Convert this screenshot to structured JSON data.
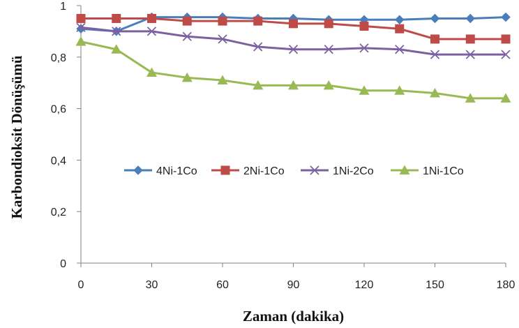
{
  "chart_data": {
    "type": "line",
    "xlabel": "Zaman (dakika)",
    "ylabel": "Karbondioksit Dönüşümü",
    "xlim": [
      0,
      180
    ],
    "ylim": [
      0,
      1
    ],
    "x_ticks": [
      0,
      30,
      60,
      90,
      120,
      150,
      180
    ],
    "x_tick_labels": [
      "0",
      "30",
      "60",
      "90",
      "120",
      "150",
      "180"
    ],
    "y_ticks": [
      0,
      0.2,
      0.4,
      0.6,
      0.8,
      1
    ],
    "y_tick_labels": [
      "0",
      "0,2",
      "0,4",
      "0,6",
      "0,8",
      "1"
    ],
    "grid": false,
    "legend_position": "center",
    "x": [
      0,
      15,
      30,
      45,
      60,
      75,
      90,
      105,
      120,
      135,
      150,
      165,
      180
    ],
    "series": [
      {
        "name": "4Ni-1Co",
        "color": "#4A7EBB",
        "marker": "diamond",
        "values": [
          0.91,
          0.9,
          0.955,
          0.955,
          0.955,
          0.95,
          0.95,
          0.945,
          0.945,
          0.945,
          0.95,
          0.95,
          0.955
        ]
      },
      {
        "name": "2Ni-1Co",
        "color": "#BE4B48",
        "marker": "square",
        "values": [
          0.95,
          0.95,
          0.95,
          0.94,
          0.94,
          0.94,
          0.93,
          0.93,
          0.92,
          0.91,
          0.87,
          0.87,
          0.87
        ]
      },
      {
        "name": "1Ni-2Co",
        "color": "#7D60A0",
        "marker": "x",
        "values": [
          0.915,
          0.9,
          0.9,
          0.88,
          0.87,
          0.84,
          0.83,
          0.83,
          0.835,
          0.83,
          0.81,
          0.81,
          0.81
        ]
      },
      {
        "name": "1Ni-1Co",
        "color": "#98B954",
        "marker": "triangle",
        "values": [
          0.86,
          0.83,
          0.74,
          0.72,
          0.71,
          0.69,
          0.69,
          0.69,
          0.67,
          0.67,
          0.66,
          0.64,
          0.64
        ]
      }
    ]
  }
}
